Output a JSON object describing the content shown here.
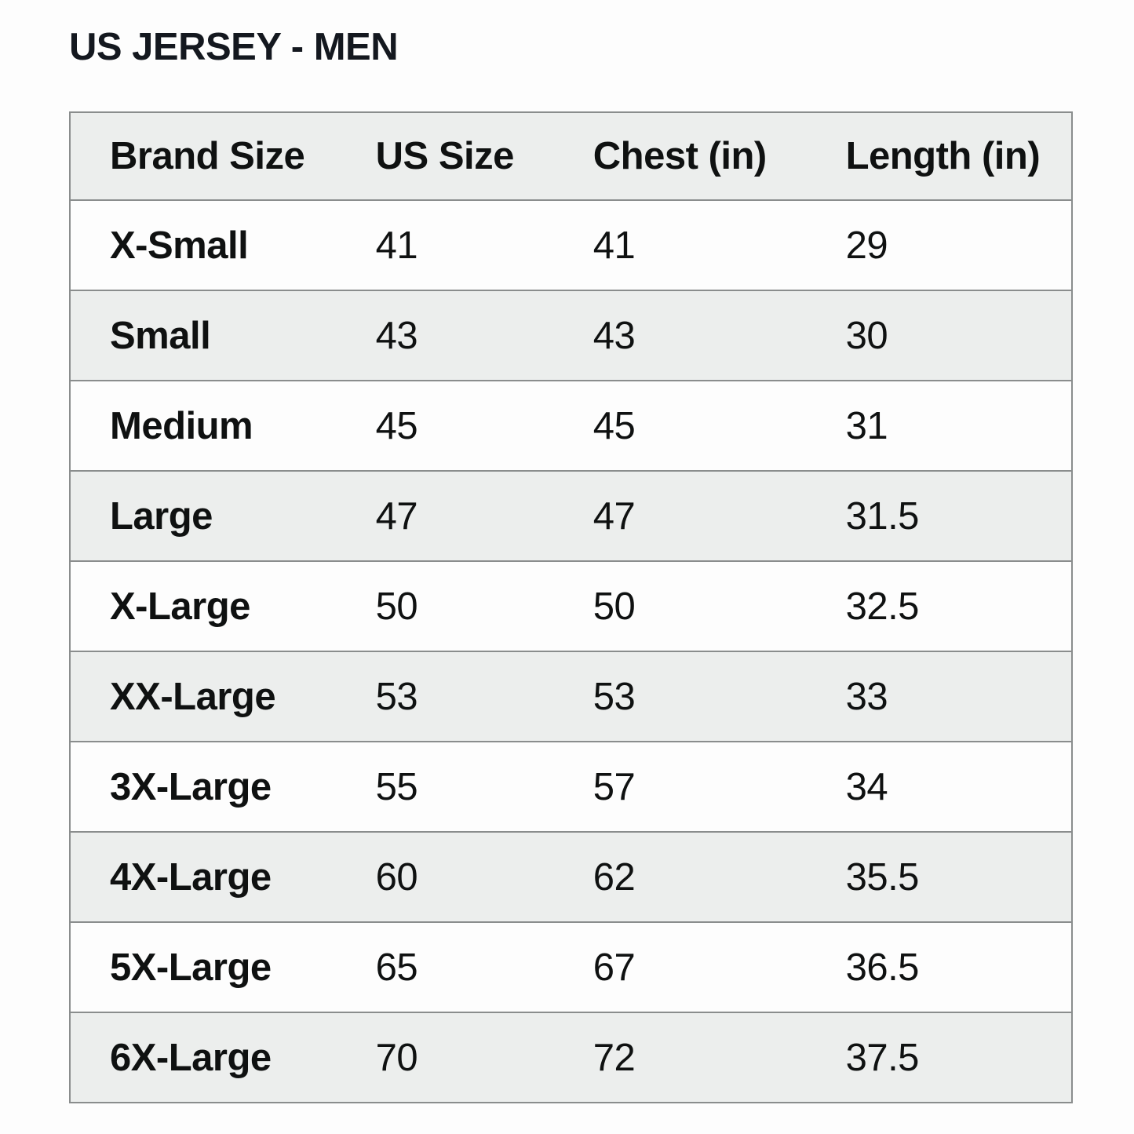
{
  "page_title": "US JERSEY - MEN",
  "table": {
    "columns": [
      "Brand Size",
      "US Size",
      "Chest (in)",
      "Length (in)"
    ],
    "rows": [
      [
        "X-Small",
        "41",
        "41",
        "29"
      ],
      [
        "Small",
        "43",
        "43",
        "30"
      ],
      [
        "Medium",
        "45",
        "45",
        "31"
      ],
      [
        "Large",
        "47",
        "47",
        "31.5"
      ],
      [
        "X-Large",
        "50",
        "50",
        "32.5"
      ],
      [
        "XX-Large",
        "53",
        "53",
        "33"
      ],
      [
        "3X-Large",
        "55",
        "57",
        "34"
      ],
      [
        "4X-Large",
        "60",
        "62",
        "35.5"
      ],
      [
        "5X-Large",
        "65",
        "67",
        "36.5"
      ],
      [
        "6X-Large",
        "70",
        "72",
        "37.5"
      ]
    ]
  },
  "colors": {
    "page_bg": "#fdfdfd",
    "stripe_bg": "#eceeed",
    "row_bg": "#fdfdfd",
    "border_color": "#8a8d8d",
    "text_color": "#0f1111",
    "title_color": "#14181f"
  }
}
